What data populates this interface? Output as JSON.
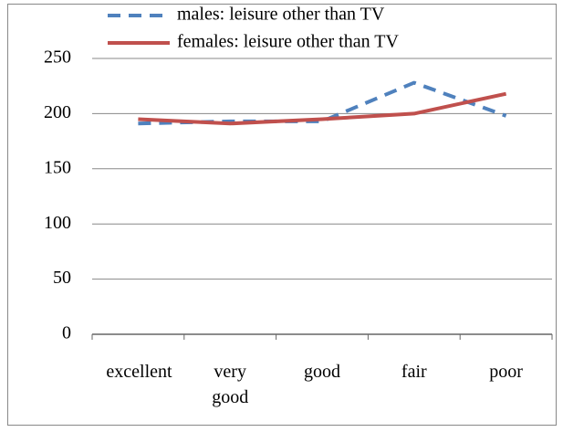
{
  "chart_data": {
    "type": "line",
    "categories": [
      "excellent",
      "very good",
      "good",
      "fair",
      "poor"
    ],
    "series": [
      {
        "name": "males: leisure other than TV",
        "color": "#4f81bd",
        "dash": true,
        "values": [
          191,
          193,
          193,
          228,
          198
        ]
      },
      {
        "name": "females: leisure other than TV",
        "color": "#c0504d",
        "dash": false,
        "values": [
          195,
          191,
          195,
          200,
          218
        ]
      }
    ],
    "ylim": [
      0,
      250
    ],
    "yticks": [
      0,
      50,
      100,
      150,
      200,
      250
    ],
    "grid": true
  }
}
